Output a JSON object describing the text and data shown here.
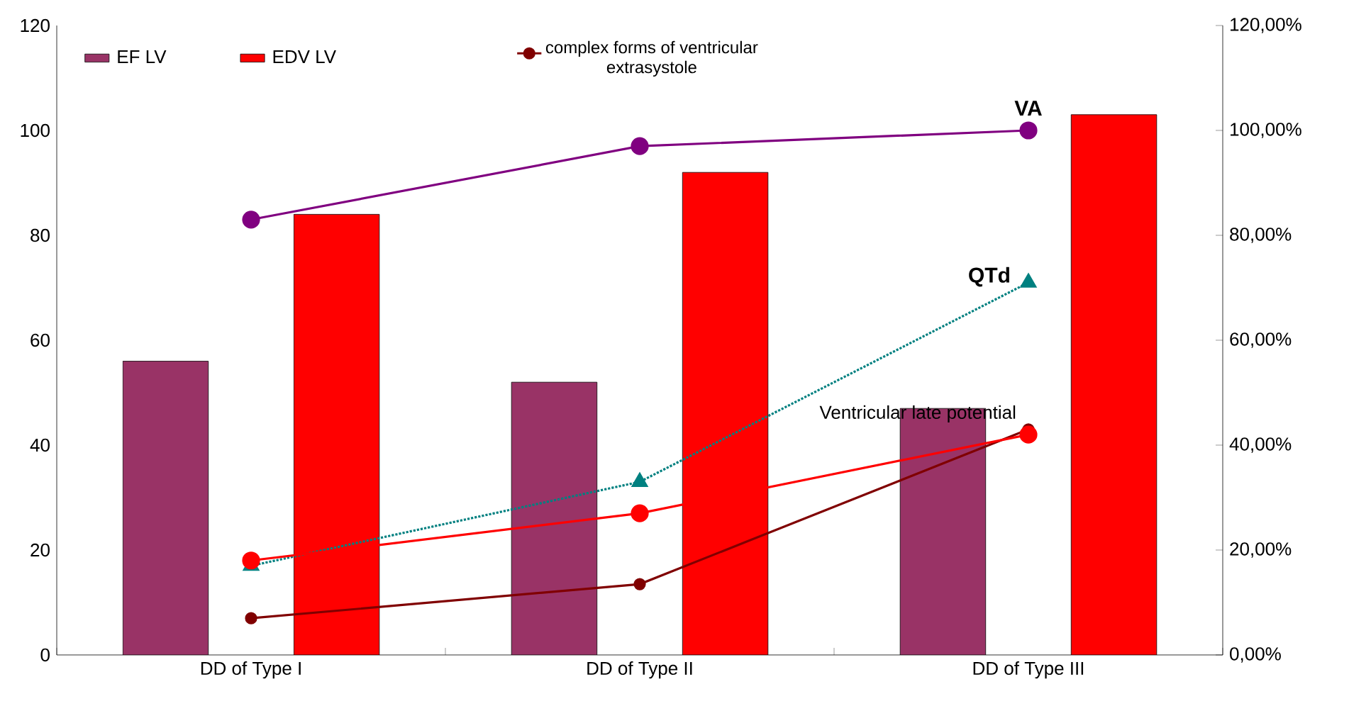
{
  "chart_data": {
    "type": "bar",
    "categories": [
      "DD of Type I",
      "DD of Type II",
      "DD of Type III"
    ],
    "series": [
      {
        "name": "EF LV",
        "color": "#993366",
        "values": [
          56,
          52,
          47
        ]
      },
      {
        "name": "EDV LV",
        "color": "#ff0000",
        "values": [
          84,
          92,
          103
        ]
      },
      {
        "name": "complex forms of ventricular extrasystole",
        "type": "line",
        "axis": "y2",
        "color": "#800000",
        "marker": "circle",
        "values": [
          7,
          13.5,
          43
        ]
      },
      {
        "name": "VA",
        "type": "line",
        "axis": "y2",
        "color": "#800080",
        "marker": "circle",
        "values": [
          83,
          97,
          100
        ]
      },
      {
        "name": "QTd",
        "type": "line",
        "axis": "y2",
        "color": "#008080",
        "marker": "triangle",
        "line_style": "dotted",
        "values": [
          17,
          33,
          71
        ]
      },
      {
        "name": "Ventricular late potential",
        "type": "line",
        "axis": "y2",
        "color": "#ff0000",
        "marker": "circle",
        "values": [
          18,
          27,
          42
        ]
      }
    ],
    "ylim": [
      0,
      120
    ],
    "yticks": [
      0,
      20,
      40,
      60,
      80,
      100,
      120
    ],
    "y2lim": [
      0,
      120
    ],
    "y2ticks": [
      {
        "value": 0,
        "label": "0,00%"
      },
      {
        "value": 20,
        "label": "20,00%"
      },
      {
        "value": 40,
        "label": "40,00%"
      },
      {
        "value": 60,
        "label": "60,00%"
      },
      {
        "value": 80,
        "label": "80,00%"
      },
      {
        "value": 100,
        "label": "100,00%"
      },
      {
        "value": 120,
        "label": "120,00%"
      }
    ],
    "grid": false,
    "legend": "top"
  }
}
